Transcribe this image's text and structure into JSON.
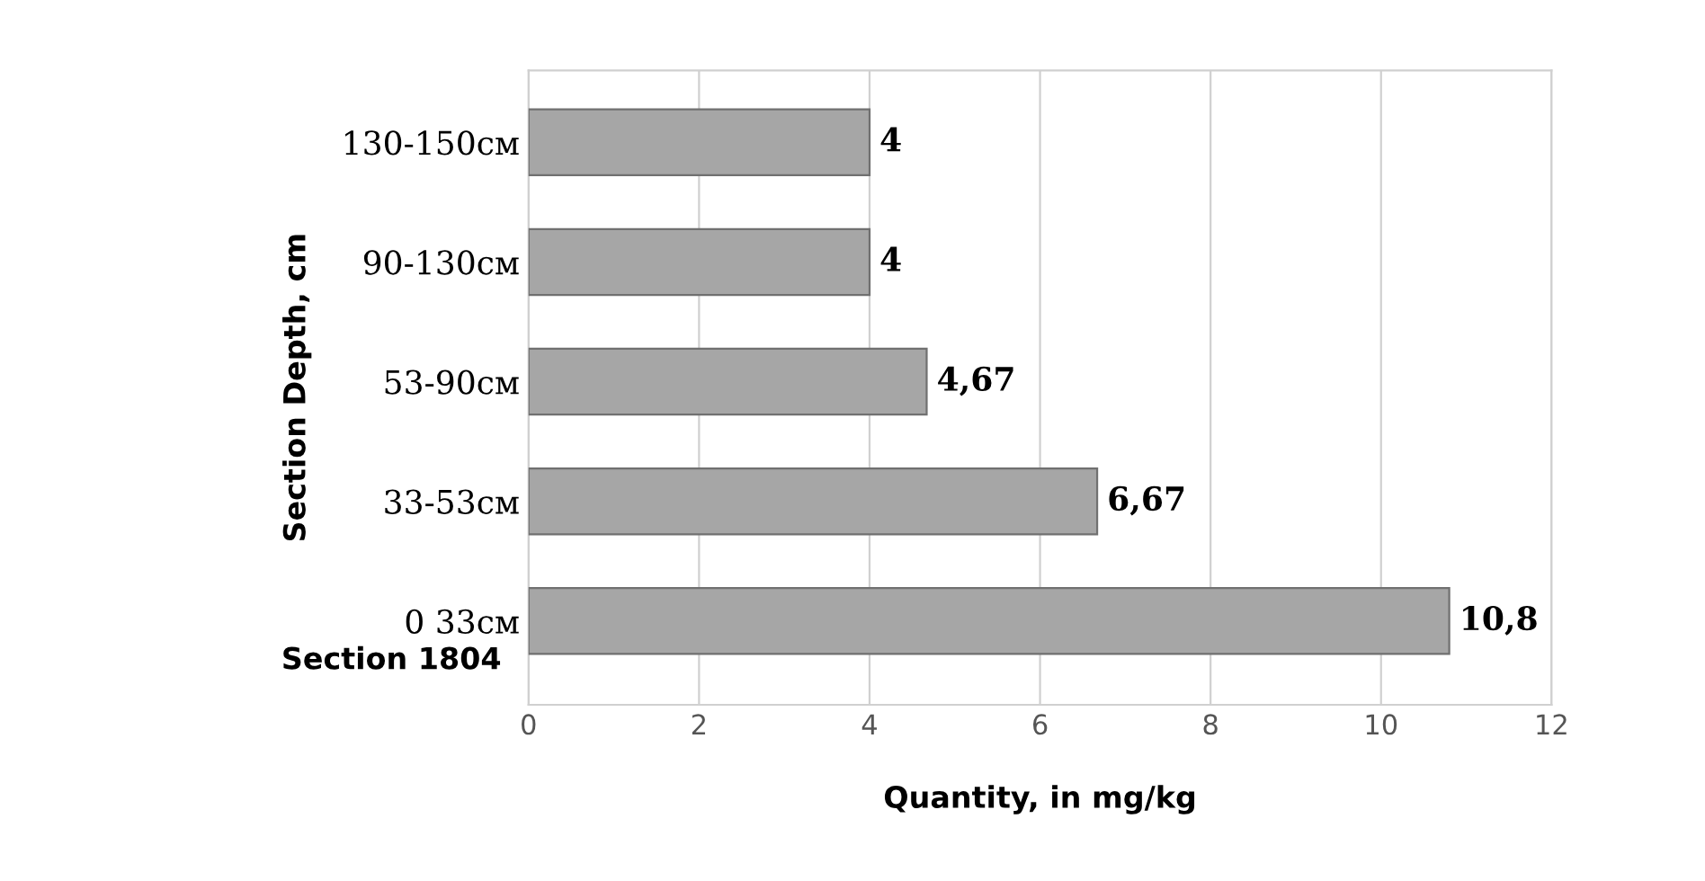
{
  "chart_data": {
    "type": "bar",
    "orientation": "horizontal",
    "xlabel": "Quantity, in mg/kg",
    "ylabel": "Section Depth, cm",
    "categories": [
      "130-150см",
      "90-130см",
      "53-90см",
      "33-53см",
      "0 33см"
    ],
    "values": [
      4,
      4,
      4.67,
      6.67,
      10.8
    ],
    "value_labels": [
      "4",
      "4",
      "4,67",
      "6,67",
      "10,8"
    ],
    "color": "#a6a6a6",
    "xlim": [
      0,
      12
    ],
    "xticks": [
      0,
      2,
      4,
      6,
      8,
      10,
      12
    ],
    "grid": "x",
    "annotations": [
      "Section 1804"
    ]
  }
}
